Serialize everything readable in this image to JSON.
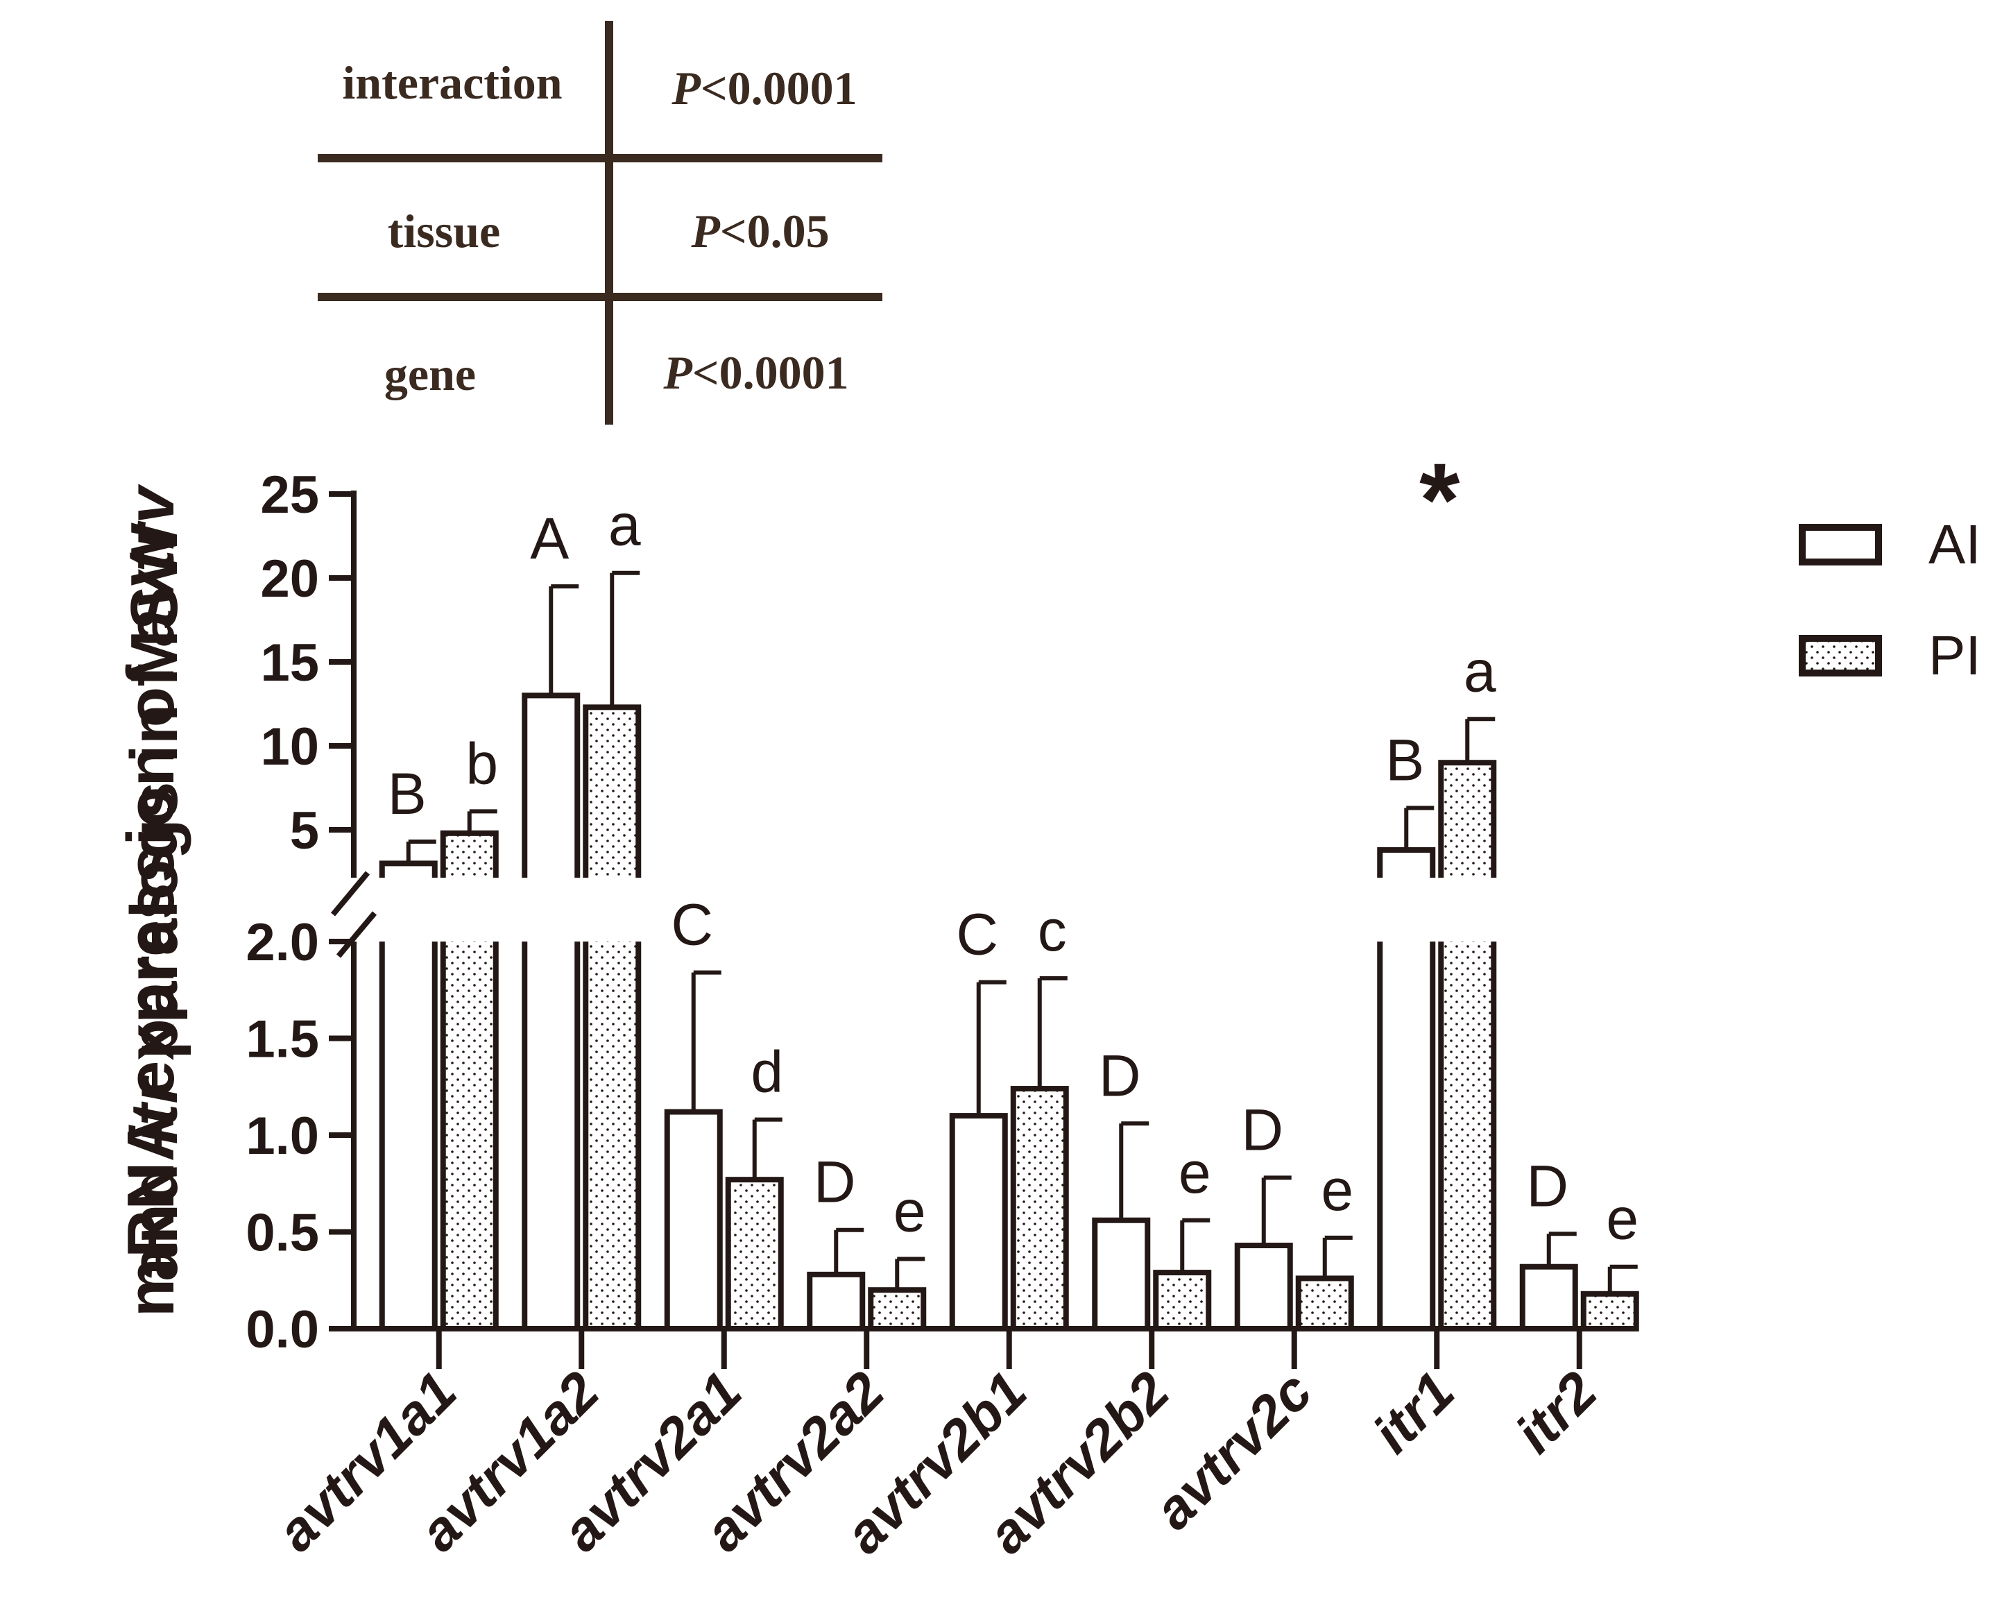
{
  "stats_table": {
    "rows": [
      {
        "term": "interaction",
        "p_prefix": "P",
        "p_value": "<0.0001"
      },
      {
        "term": "tissue",
        "p_prefix": "P",
        "p_value": "<0.05"
      },
      {
        "term": "gene",
        "p_prefix": "P",
        "p_value": "<0.0001"
      }
    ]
  },
  "chart_data": {
    "type": "bar",
    "title": "",
    "ylabel_line1_prefix": "mRNA expression of ",
    "ylabel_line1_italic": "avtrv",
    "ylabel_line2_prefix": "and ",
    "ylabel_line2_italic": "itr",
    "ylabel_line2_suffix": " paralogs in MSW",
    "xlabel": "",
    "categories": [
      "avtrv1a1",
      "avtrv1a2",
      "avtrv2a1",
      "avtrv2a2",
      "avtrv2b1",
      "avtrv2b2",
      "avtrv2c",
      "itr1",
      "itr2"
    ],
    "series": [
      {
        "name": "AI",
        "pattern": "open",
        "values": [
          3.0,
          13.0,
          1.12,
          0.28,
          1.1,
          0.56,
          0.43,
          3.8,
          0.32
        ],
        "errors": [
          1.3,
          6.5,
          0.72,
          0.23,
          0.69,
          0.5,
          0.35,
          2.5,
          0.17
        ],
        "letters": [
          "B",
          "A",
          "C",
          "D",
          "C",
          "D",
          "D",
          "B",
          "D"
        ]
      },
      {
        "name": "PI",
        "pattern": "dotted",
        "values": [
          4.8,
          12.3,
          0.77,
          0.2,
          1.24,
          0.29,
          0.26,
          9.0,
          0.18
        ],
        "errors": [
          1.3,
          8.0,
          0.31,
          0.16,
          0.57,
          0.27,
          0.21,
          2.6,
          0.14
        ],
        "letters": [
          "b",
          "a",
          "d",
          "e",
          "c",
          "e",
          "e",
          "a",
          "e"
        ]
      }
    ],
    "significance": [
      {
        "category": "itr1",
        "symbol": "*"
      }
    ],
    "y_axis_lower": {
      "range": [
        0,
        2.0
      ],
      "ticks": [
        "0.0",
        "0.5",
        "1.0",
        "1.5",
        "2.0"
      ]
    },
    "y_axis_upper": {
      "range": [
        2.0,
        25
      ],
      "ticks": [
        "5",
        "10",
        "15",
        "20",
        "25"
      ]
    },
    "axis_break": true
  }
}
